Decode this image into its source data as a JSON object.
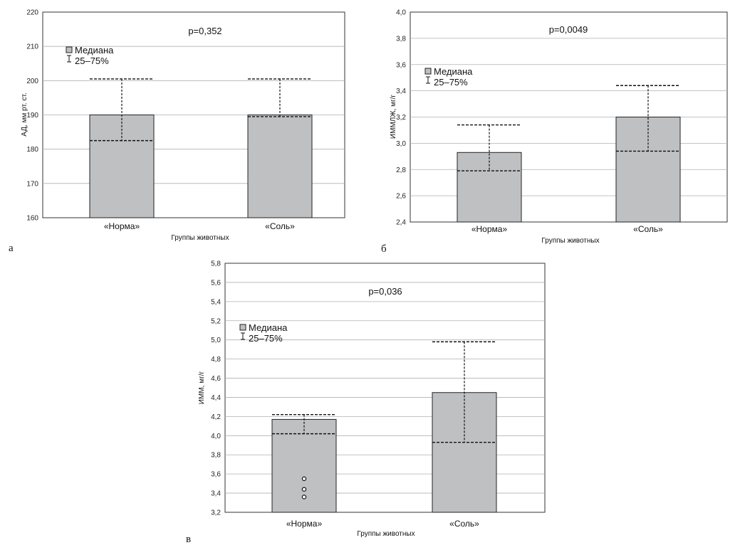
{
  "chart_data": [
    {
      "panel_label": "а",
      "type": "bar",
      "p_value": "p=0,352",
      "ylabel": "АД, мм рт. ст.",
      "xlabel": "Группы животных",
      "ylim": [
        160,
        220
      ],
      "yticks": [
        "160",
        "170",
        "180",
        "190",
        "200",
        "210",
        "220"
      ],
      "yticks_values": [
        160,
        170,
        180,
        190,
        200,
        210,
        220
      ],
      "legend": {
        "median": "Медиана",
        "iqr": "25–75%"
      },
      "categories": [
        "«Норма»",
        "«Соль»"
      ],
      "bar_values": [
        190,
        190
      ],
      "q25": [
        182.5,
        189.5
      ],
      "q75": [
        200.5,
        200.5
      ],
      "outliers": [
        [],
        []
      ]
    },
    {
      "panel_label": "б",
      "type": "bar",
      "p_value": "p=0,0049",
      "ylabel": "ИММЛЖ, мг/г",
      "xlabel": "Группы животных",
      "ylim": [
        2.4,
        4.0
      ],
      "yticks": [
        "2,4",
        "2,6",
        "2,8",
        "3,0",
        "3,2",
        "3,4",
        "3,6",
        "3,8",
        "4,0"
      ],
      "yticks_values": [
        2.4,
        2.6,
        2.8,
        3.0,
        3.2,
        3.4,
        3.6,
        3.8,
        4.0
      ],
      "legend": {
        "median": "Медиана",
        "iqr": "25–75%"
      },
      "categories": [
        "«Норма»",
        "«Соль»"
      ],
      "bar_values": [
        2.93,
        3.2
      ],
      "q25": [
        2.79,
        2.94
      ],
      "q75": [
        3.14,
        3.44
      ],
      "outliers": [
        [],
        []
      ]
    },
    {
      "panel_label": "в",
      "type": "bar",
      "p_value": "p=0,036",
      "ylabel": "ИММ, мг/г",
      "xlabel": "Группы животных",
      "ylim": [
        3.2,
        5.8
      ],
      "yticks": [
        "3,2",
        "3,4",
        "3,6",
        "3,8",
        "4,0",
        "4,2",
        "4,4",
        "4,6",
        "4,8",
        "5,0",
        "5,2",
        "5,4",
        "5,6",
        "5,8"
      ],
      "yticks_values": [
        3.2,
        3.4,
        3.6,
        3.8,
        4.0,
        4.2,
        4.4,
        4.6,
        4.8,
        5.0,
        5.2,
        5.4,
        5.6,
        5.8
      ],
      "legend": {
        "median": "Медиана",
        "iqr": "25–75%"
      },
      "categories": [
        "«Норма»",
        "«Соль»"
      ],
      "bar_values": [
        4.17,
        4.45
      ],
      "q25": [
        4.02,
        3.93
      ],
      "q75": [
        4.22,
        4.98
      ],
      "outliers": [
        [
          3.55,
          3.44,
          3.36
        ],
        []
      ]
    }
  ],
  "colors": {
    "bar": "#bfc0c2",
    "grid": "#b0b0b0",
    "axis": "#333333"
  }
}
